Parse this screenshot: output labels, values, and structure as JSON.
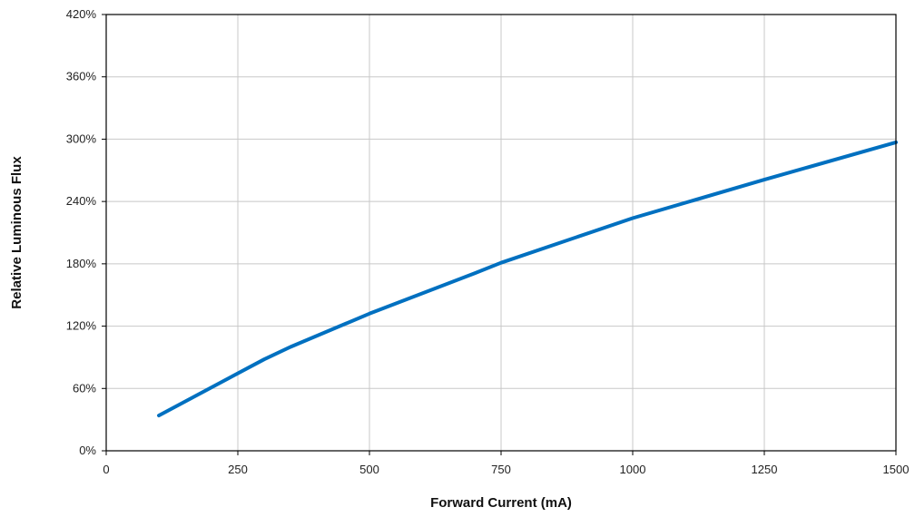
{
  "chart_data": {
    "type": "line",
    "title": "",
    "xlabel": "Forward Current (mA)",
    "ylabel": "Relative Luminous Flux",
    "xlim": [
      0,
      1500
    ],
    "ylim": [
      0,
      420
    ],
    "x_ticks": [
      0,
      250,
      500,
      750,
      1000,
      1250,
      1500
    ],
    "y_ticks": [
      0,
      60,
      120,
      180,
      240,
      300,
      360,
      420
    ],
    "x_tick_labels": [
      "0",
      "250",
      "500",
      "750",
      "1000",
      "1250",
      "1500"
    ],
    "y_tick_labels": [
      "0%",
      "60%",
      "120%",
      "180%",
      "240%",
      "300%",
      "360%",
      "420%"
    ],
    "grid": true,
    "legend": "none",
    "series": [
      {
        "color": "#0070c0",
        "x": [
          100,
          200,
          300,
          350,
          500,
          700,
          750,
          1000,
          1250,
          1500
        ],
        "y": [
          34,
          61,
          88,
          100,
          132,
          171,
          181,
          224,
          261,
          297
        ]
      }
    ]
  }
}
